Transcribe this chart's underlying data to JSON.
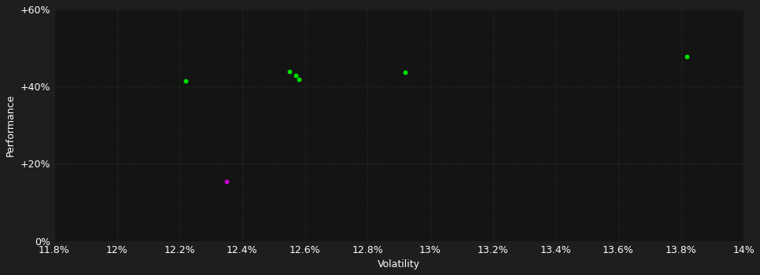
{
  "background_color": "#1e1e1e",
  "plot_bg_color": "#141414",
  "text_color": "#ffffff",
  "xlabel": "Volatility",
  "ylabel": "Performance",
  "xlim": [
    11.8,
    14.0
  ],
  "ylim": [
    0.0,
    0.6
  ],
  "xticks": [
    11.8,
    12.0,
    12.2,
    12.4,
    12.6,
    12.8,
    13.0,
    13.2,
    13.4,
    13.6,
    13.8,
    14.0
  ],
  "xtick_labels": [
    "11.8%",
    "12%",
    "12.2%",
    "12.4%",
    "12.6%",
    "12.8%",
    "13%",
    "13.2%",
    "13.4%",
    "13.6%",
    "13.8%",
    "14%"
  ],
  "yticks": [
    0.0,
    0.2,
    0.4,
    0.6
  ],
  "ytick_labels": [
    "0%",
    "+20%",
    "+40%",
    "+60%"
  ],
  "green_points": [
    [
      12.22,
      0.415
    ],
    [
      12.55,
      0.44
    ],
    [
      12.57,
      0.428
    ],
    [
      12.58,
      0.418
    ],
    [
      12.92,
      0.437
    ],
    [
      13.82,
      0.478
    ]
  ],
  "magenta_points": [
    [
      12.35,
      0.155
    ]
  ],
  "green_color": "#00e000",
  "magenta_color": "#cc00cc",
  "marker_size": 18,
  "font_size": 9,
  "label_font_size": 9,
  "grid_color": "#3a6a3a",
  "grid_alpha": 0.6,
  "grid_linewidth": 0.5
}
